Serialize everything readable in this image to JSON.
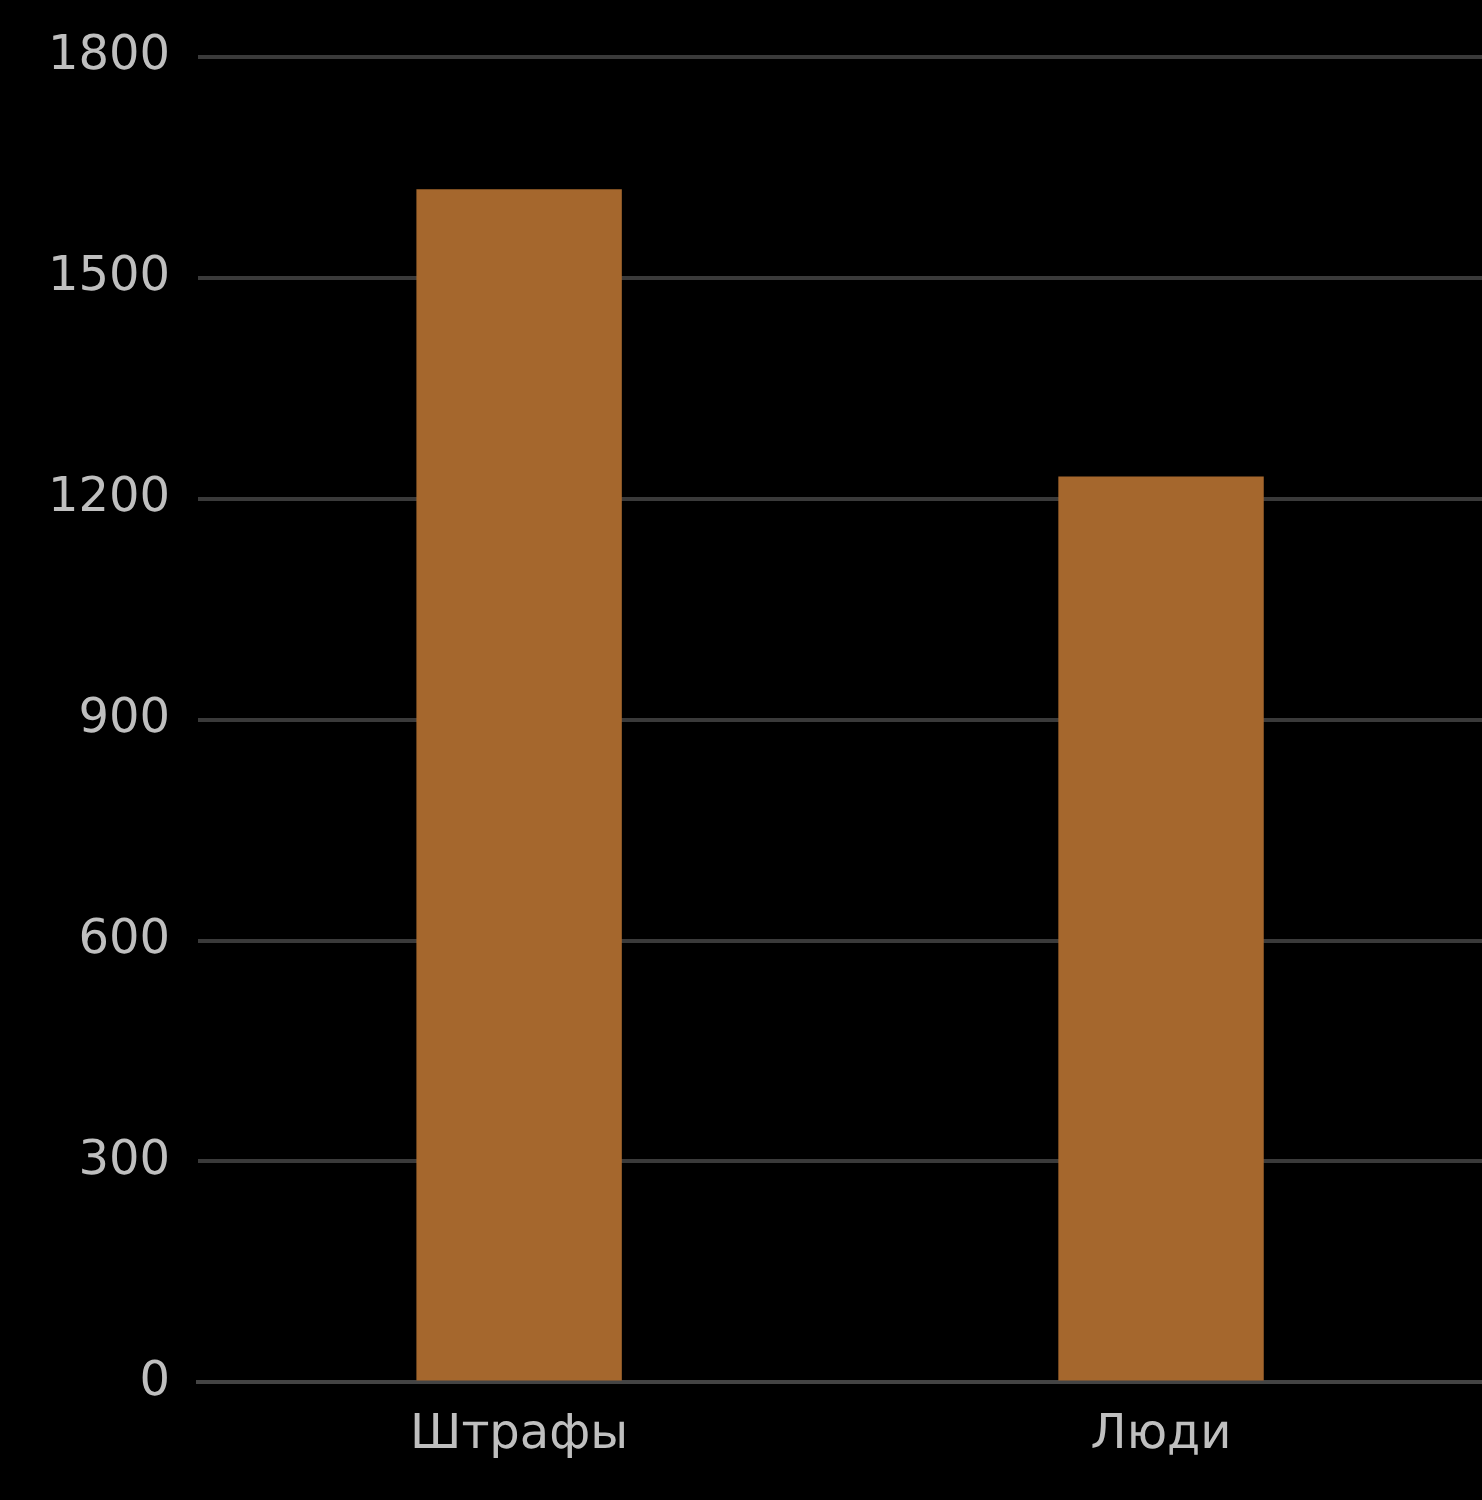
{
  "chart_data": {
    "type": "bar",
    "categories": [
      "Штрафы",
      "Люди"
    ],
    "values": [
      1620,
      1230
    ],
    "color": "#a5672d",
    "ylim": [
      0,
      1800
    ],
    "yticks": [
      0,
      300,
      600,
      900,
      1200,
      1500,
      1800
    ],
    "grid": "y",
    "legend": false
  }
}
